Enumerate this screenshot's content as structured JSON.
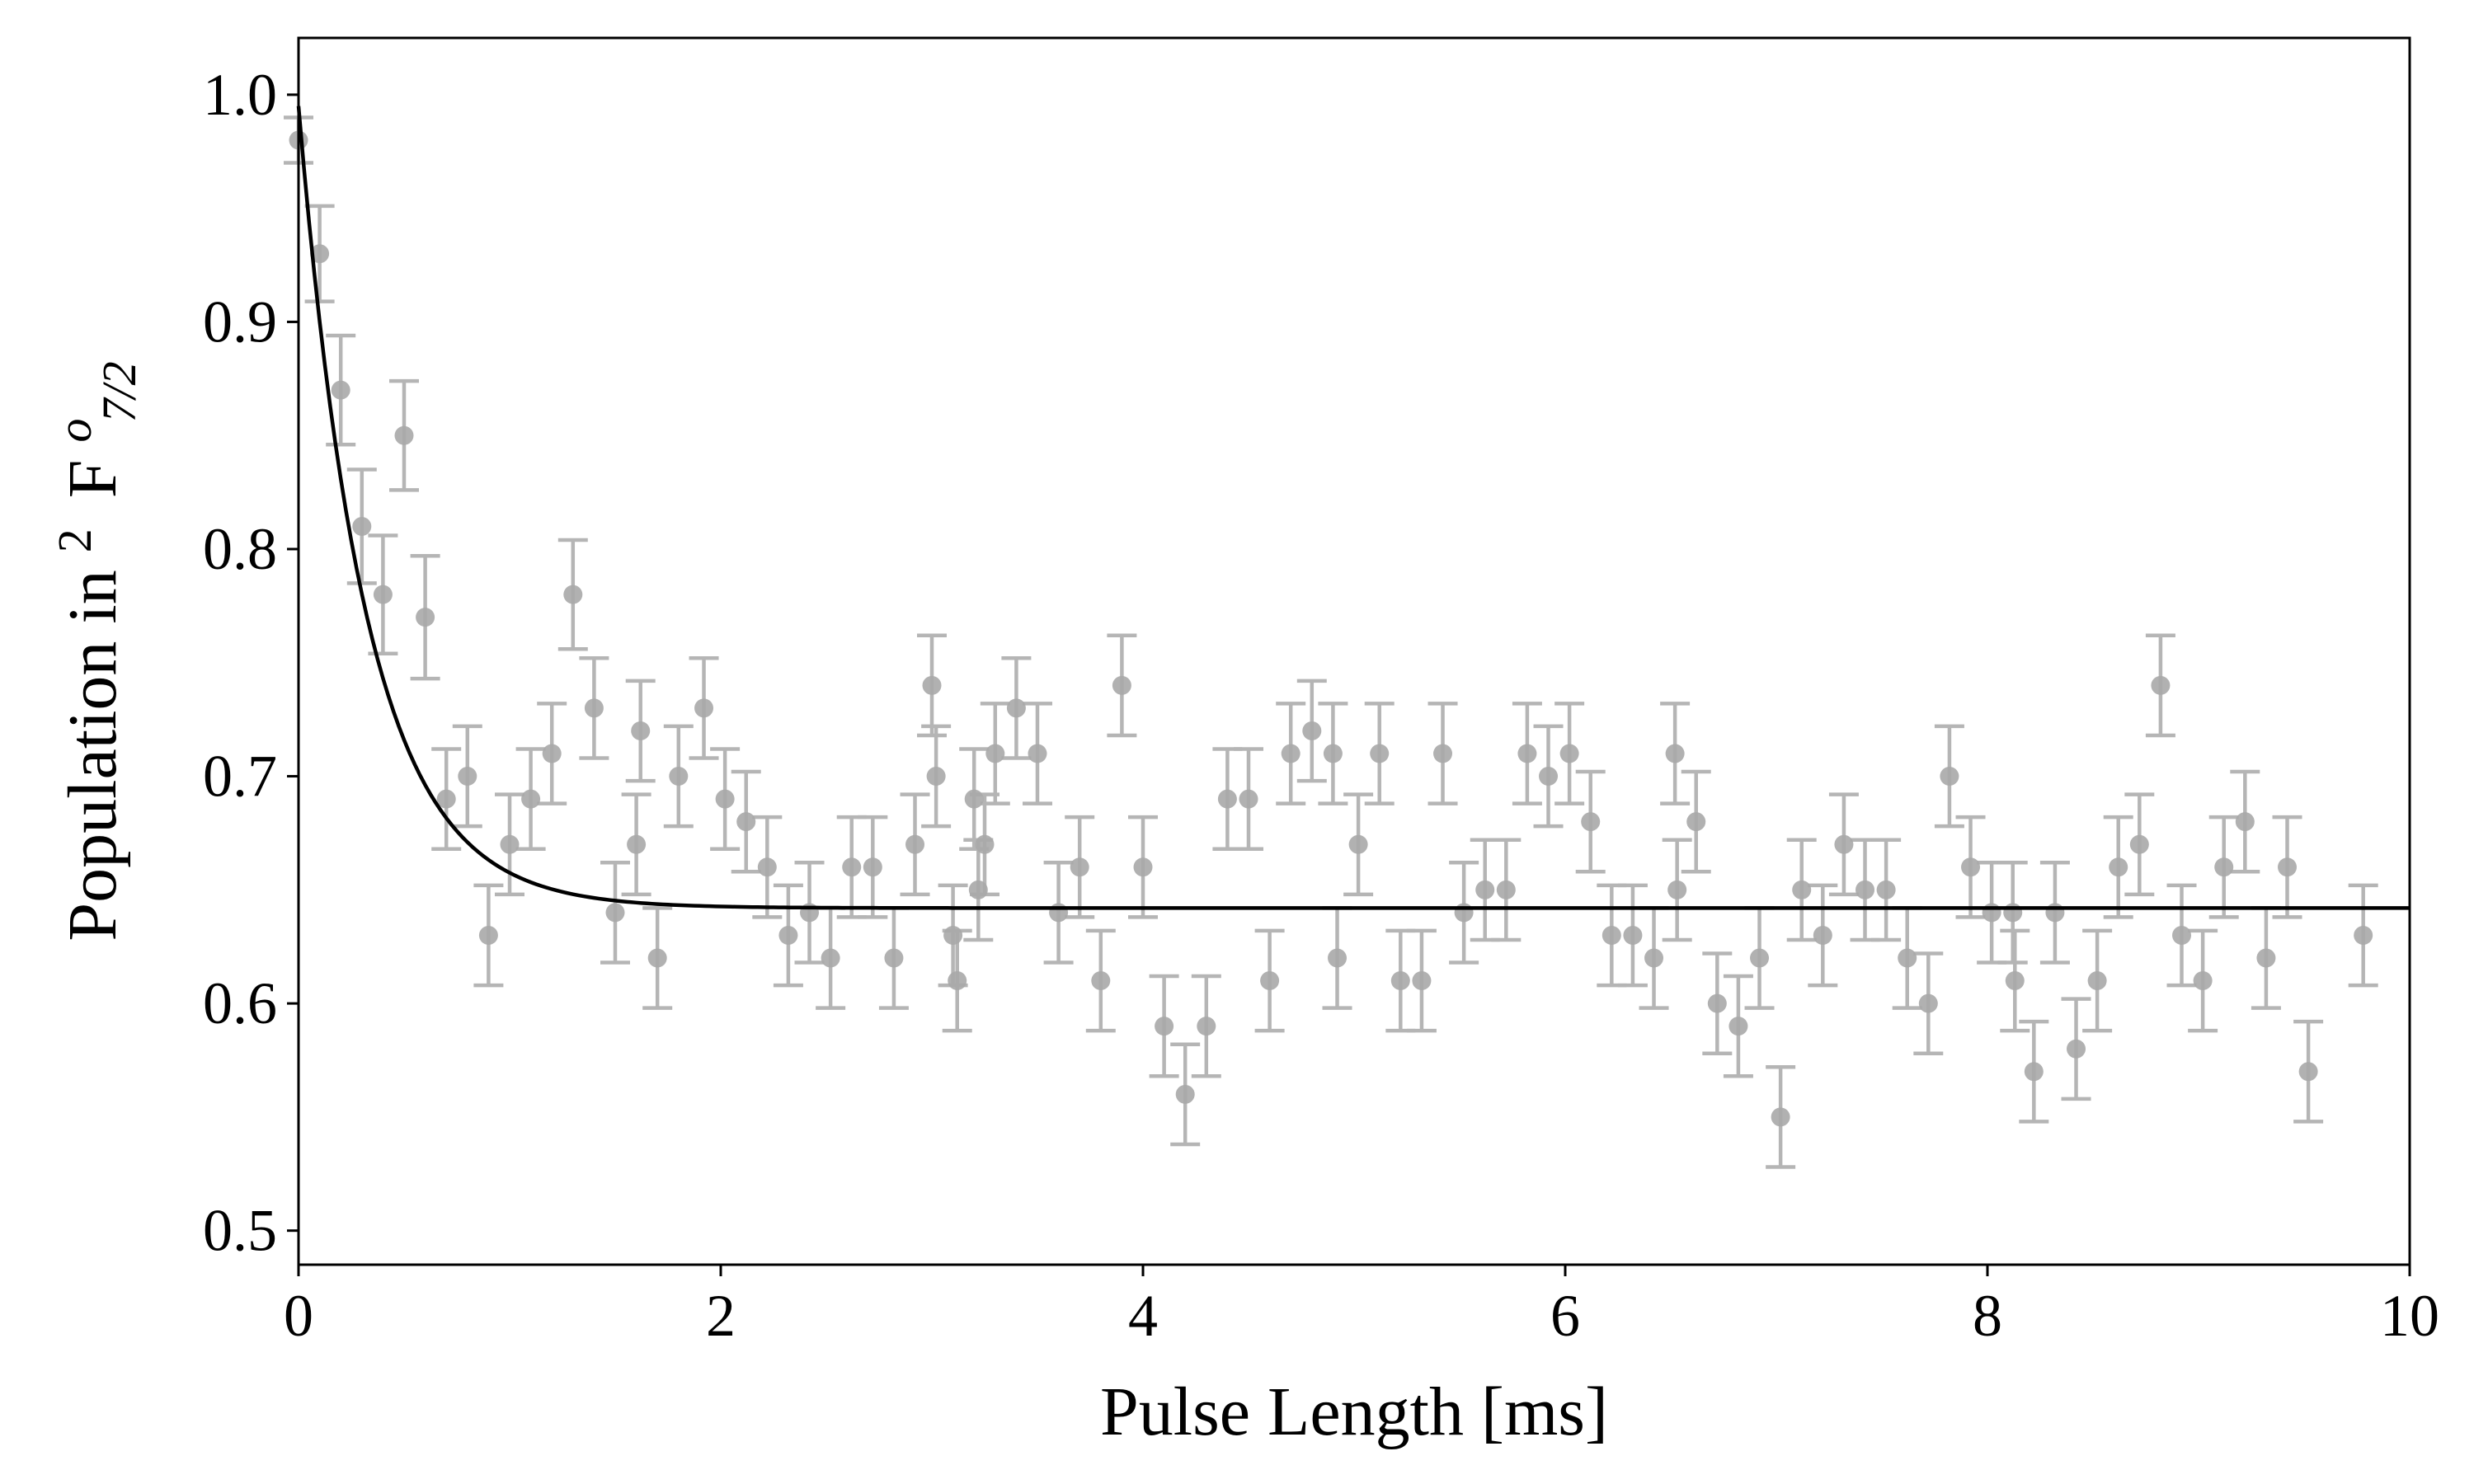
{
  "chart_data": {
    "type": "scatter",
    "xlabel": "Pulse Length [ms]",
    "ylabel": {
      "prefix": "Population in ",
      "superscript_left": "2",
      "main": "F",
      "superscript_right": "o",
      "subscript": "7/2"
    },
    "xlim": [
      0,
      10
    ],
    "ylim": [
      0.485,
      1.025
    ],
    "x_ticks": [
      0,
      2,
      4,
      6,
      8,
      10
    ],
    "x_tick_labels": [
      "0",
      "2",
      "4",
      "6",
      "8",
      "10"
    ],
    "y_ticks": [
      0.5,
      0.6,
      0.7,
      0.8,
      0.9,
      1.0
    ],
    "y_tick_labels": [
      "0.5",
      "0.6",
      "0.7",
      "0.8",
      "0.9",
      "1.0"
    ],
    "grid": false,
    "colors": {
      "points": "#a9a9a9",
      "errorbars": "#b5b5b5",
      "fit": "#000000"
    },
    "series": [
      {
        "kind": "errorbar-scatter",
        "points": [
          {
            "x": 0.0,
            "y": 0.98,
            "err": 0.01
          },
          {
            "x": 0.1,
            "y": 0.93,
            "err": 0.021
          },
          {
            "x": 0.2,
            "y": 0.87,
            "err": 0.024
          },
          {
            "x": 0.3,
            "y": 0.81,
            "err": 0.025
          },
          {
            "x": 0.4,
            "y": 0.78,
            "err": 0.026
          },
          {
            "x": 0.5,
            "y": 0.85,
            "err": 0.024
          },
          {
            "x": 0.6,
            "y": 0.77,
            "err": 0.027
          },
          {
            "x": 0.7,
            "y": 0.69,
            "err": 0.022
          },
          {
            "x": 0.8,
            "y": 0.7,
            "err": 0.022
          },
          {
            "x": 0.9,
            "y": 0.63,
            "err": 0.022
          },
          {
            "x": 1.0,
            "y": 0.67,
            "err": 0.022
          },
          {
            "x": 1.1,
            "y": 0.69,
            "err": 0.022
          },
          {
            "x": 1.2,
            "y": 0.71,
            "err": 0.022
          },
          {
            "x": 1.3,
            "y": 0.78,
            "err": 0.024
          },
          {
            "x": 1.4,
            "y": 0.73,
            "err": 0.022
          },
          {
            "x": 1.5,
            "y": 0.64,
            "err": 0.022
          },
          {
            "x": 1.6,
            "y": 0.67,
            "err": 0.022
          },
          {
            "x": 1.62,
            "y": 0.72,
            "err": 0.022
          },
          {
            "x": 1.7,
            "y": 0.62,
            "err": 0.022
          },
          {
            "x": 1.8,
            "y": 0.7,
            "err": 0.022
          },
          {
            "x": 1.92,
            "y": 0.73,
            "err": 0.022
          },
          {
            "x": 2.02,
            "y": 0.69,
            "err": 0.022
          },
          {
            "x": 2.12,
            "y": 0.68,
            "err": 0.022
          },
          {
            "x": 2.22,
            "y": 0.66,
            "err": 0.022
          },
          {
            "x": 2.32,
            "y": 0.63,
            "err": 0.022
          },
          {
            "x": 2.42,
            "y": 0.64,
            "err": 0.022
          },
          {
            "x": 2.52,
            "y": 0.62,
            "err": 0.022
          },
          {
            "x": 2.62,
            "y": 0.66,
            "err": 0.022
          },
          {
            "x": 2.72,
            "y": 0.66,
            "err": 0.022
          },
          {
            "x": 2.82,
            "y": 0.62,
            "err": 0.022
          },
          {
            "x": 2.92,
            "y": 0.67,
            "err": 0.022
          },
          {
            "x": 3.0,
            "y": 0.74,
            "err": 0.022
          },
          {
            "x": 3.02,
            "y": 0.7,
            "err": 0.022
          },
          {
            "x": 3.1,
            "y": 0.63,
            "err": 0.022
          },
          {
            "x": 3.12,
            "y": 0.61,
            "err": 0.022
          },
          {
            "x": 3.2,
            "y": 0.69,
            "err": 0.022
          },
          {
            "x": 3.22,
            "y": 0.65,
            "err": 0.022
          },
          {
            "x": 3.25,
            "y": 0.67,
            "err": 0.022
          },
          {
            "x": 3.3,
            "y": 0.71,
            "err": 0.022
          },
          {
            "x": 3.4,
            "y": 0.73,
            "err": 0.022
          },
          {
            "x": 3.5,
            "y": 0.71,
            "err": 0.022
          },
          {
            "x": 3.6,
            "y": 0.64,
            "err": 0.022
          },
          {
            "x": 3.7,
            "y": 0.66,
            "err": 0.022
          },
          {
            "x": 3.8,
            "y": 0.61,
            "err": 0.022
          },
          {
            "x": 3.9,
            "y": 0.74,
            "err": 0.022
          },
          {
            "x": 4.0,
            "y": 0.66,
            "err": 0.022
          },
          {
            "x": 4.1,
            "y": 0.59,
            "err": 0.022
          },
          {
            "x": 4.2,
            "y": 0.56,
            "err": 0.022
          },
          {
            "x": 4.3,
            "y": 0.59,
            "err": 0.022
          },
          {
            "x": 4.4,
            "y": 0.69,
            "err": 0.022
          },
          {
            "x": 4.5,
            "y": 0.69,
            "err": 0.022
          },
          {
            "x": 4.6,
            "y": 0.61,
            "err": 0.022
          },
          {
            "x": 4.7,
            "y": 0.71,
            "err": 0.022
          },
          {
            "x": 4.8,
            "y": 0.72,
            "err": 0.022
          },
          {
            "x": 4.9,
            "y": 0.71,
            "err": 0.022
          },
          {
            "x": 4.92,
            "y": 0.62,
            "err": 0.022
          },
          {
            "x": 5.02,
            "y": 0.67,
            "err": 0.022
          },
          {
            "x": 5.12,
            "y": 0.71,
            "err": 0.022
          },
          {
            "x": 5.22,
            "y": 0.61,
            "err": 0.022
          },
          {
            "x": 5.32,
            "y": 0.61,
            "err": 0.022
          },
          {
            "x": 5.42,
            "y": 0.71,
            "err": 0.022
          },
          {
            "x": 5.52,
            "y": 0.64,
            "err": 0.022
          },
          {
            "x": 5.62,
            "y": 0.65,
            "err": 0.022
          },
          {
            "x": 5.72,
            "y": 0.65,
            "err": 0.022
          },
          {
            "x": 5.82,
            "y": 0.71,
            "err": 0.022
          },
          {
            "x": 5.92,
            "y": 0.7,
            "err": 0.022
          },
          {
            "x": 6.02,
            "y": 0.71,
            "err": 0.022
          },
          {
            "x": 6.12,
            "y": 0.68,
            "err": 0.022
          },
          {
            "x": 6.22,
            "y": 0.63,
            "err": 0.022
          },
          {
            "x": 6.32,
            "y": 0.63,
            "err": 0.022
          },
          {
            "x": 6.42,
            "y": 0.62,
            "err": 0.022
          },
          {
            "x": 6.52,
            "y": 0.71,
            "err": 0.022
          },
          {
            "x": 6.53,
            "y": 0.65,
            "err": 0.022
          },
          {
            "x": 6.62,
            "y": 0.68,
            "err": 0.022
          },
          {
            "x": 6.72,
            "y": 0.6,
            "err": 0.022
          },
          {
            "x": 6.82,
            "y": 0.59,
            "err": 0.022
          },
          {
            "x": 6.92,
            "y": 0.62,
            "err": 0.022
          },
          {
            "x": 7.02,
            "y": 0.55,
            "err": 0.022
          },
          {
            "x": 7.12,
            "y": 0.65,
            "err": 0.022
          },
          {
            "x": 7.22,
            "y": 0.63,
            "err": 0.022
          },
          {
            "x": 7.32,
            "y": 0.67,
            "err": 0.022
          },
          {
            "x": 7.42,
            "y": 0.65,
            "err": 0.022
          },
          {
            "x": 7.52,
            "y": 0.65,
            "err": 0.022
          },
          {
            "x": 7.62,
            "y": 0.62,
            "err": 0.022
          },
          {
            "x": 7.72,
            "y": 0.6,
            "err": 0.022
          },
          {
            "x": 7.82,
            "y": 0.7,
            "err": 0.022
          },
          {
            "x": 7.92,
            "y": 0.66,
            "err": 0.022
          },
          {
            "x": 8.02,
            "y": 0.64,
            "err": 0.022
          },
          {
            "x": 8.12,
            "y": 0.64,
            "err": 0.022
          },
          {
            "x": 8.13,
            "y": 0.61,
            "err": 0.022
          },
          {
            "x": 8.22,
            "y": 0.57,
            "err": 0.022
          },
          {
            "x": 8.32,
            "y": 0.64,
            "err": 0.022
          },
          {
            "x": 8.42,
            "y": 0.58,
            "err": 0.022
          },
          {
            "x": 8.52,
            "y": 0.61,
            "err": 0.022
          },
          {
            "x": 8.62,
            "y": 0.66,
            "err": 0.022
          },
          {
            "x": 8.72,
            "y": 0.67,
            "err": 0.022
          },
          {
            "x": 8.82,
            "y": 0.74,
            "err": 0.022
          },
          {
            "x": 8.92,
            "y": 0.63,
            "err": 0.022
          },
          {
            "x": 9.02,
            "y": 0.61,
            "err": 0.022
          },
          {
            "x": 9.12,
            "y": 0.66,
            "err": 0.022
          },
          {
            "x": 9.22,
            "y": 0.68,
            "err": 0.022
          },
          {
            "x": 9.32,
            "y": 0.62,
            "err": 0.022
          },
          {
            "x": 9.42,
            "y": 0.66,
            "err": 0.022
          },
          {
            "x": 9.52,
            "y": 0.57,
            "err": 0.022
          },
          {
            "x": 9.78,
            "y": 0.63,
            "err": 0.022
          }
        ]
      },
      {
        "kind": "fit-line",
        "model": "exponential decay",
        "y0": 0.995,
        "y_inf": 0.642,
        "tau_ms": 0.32
      }
    ]
  }
}
